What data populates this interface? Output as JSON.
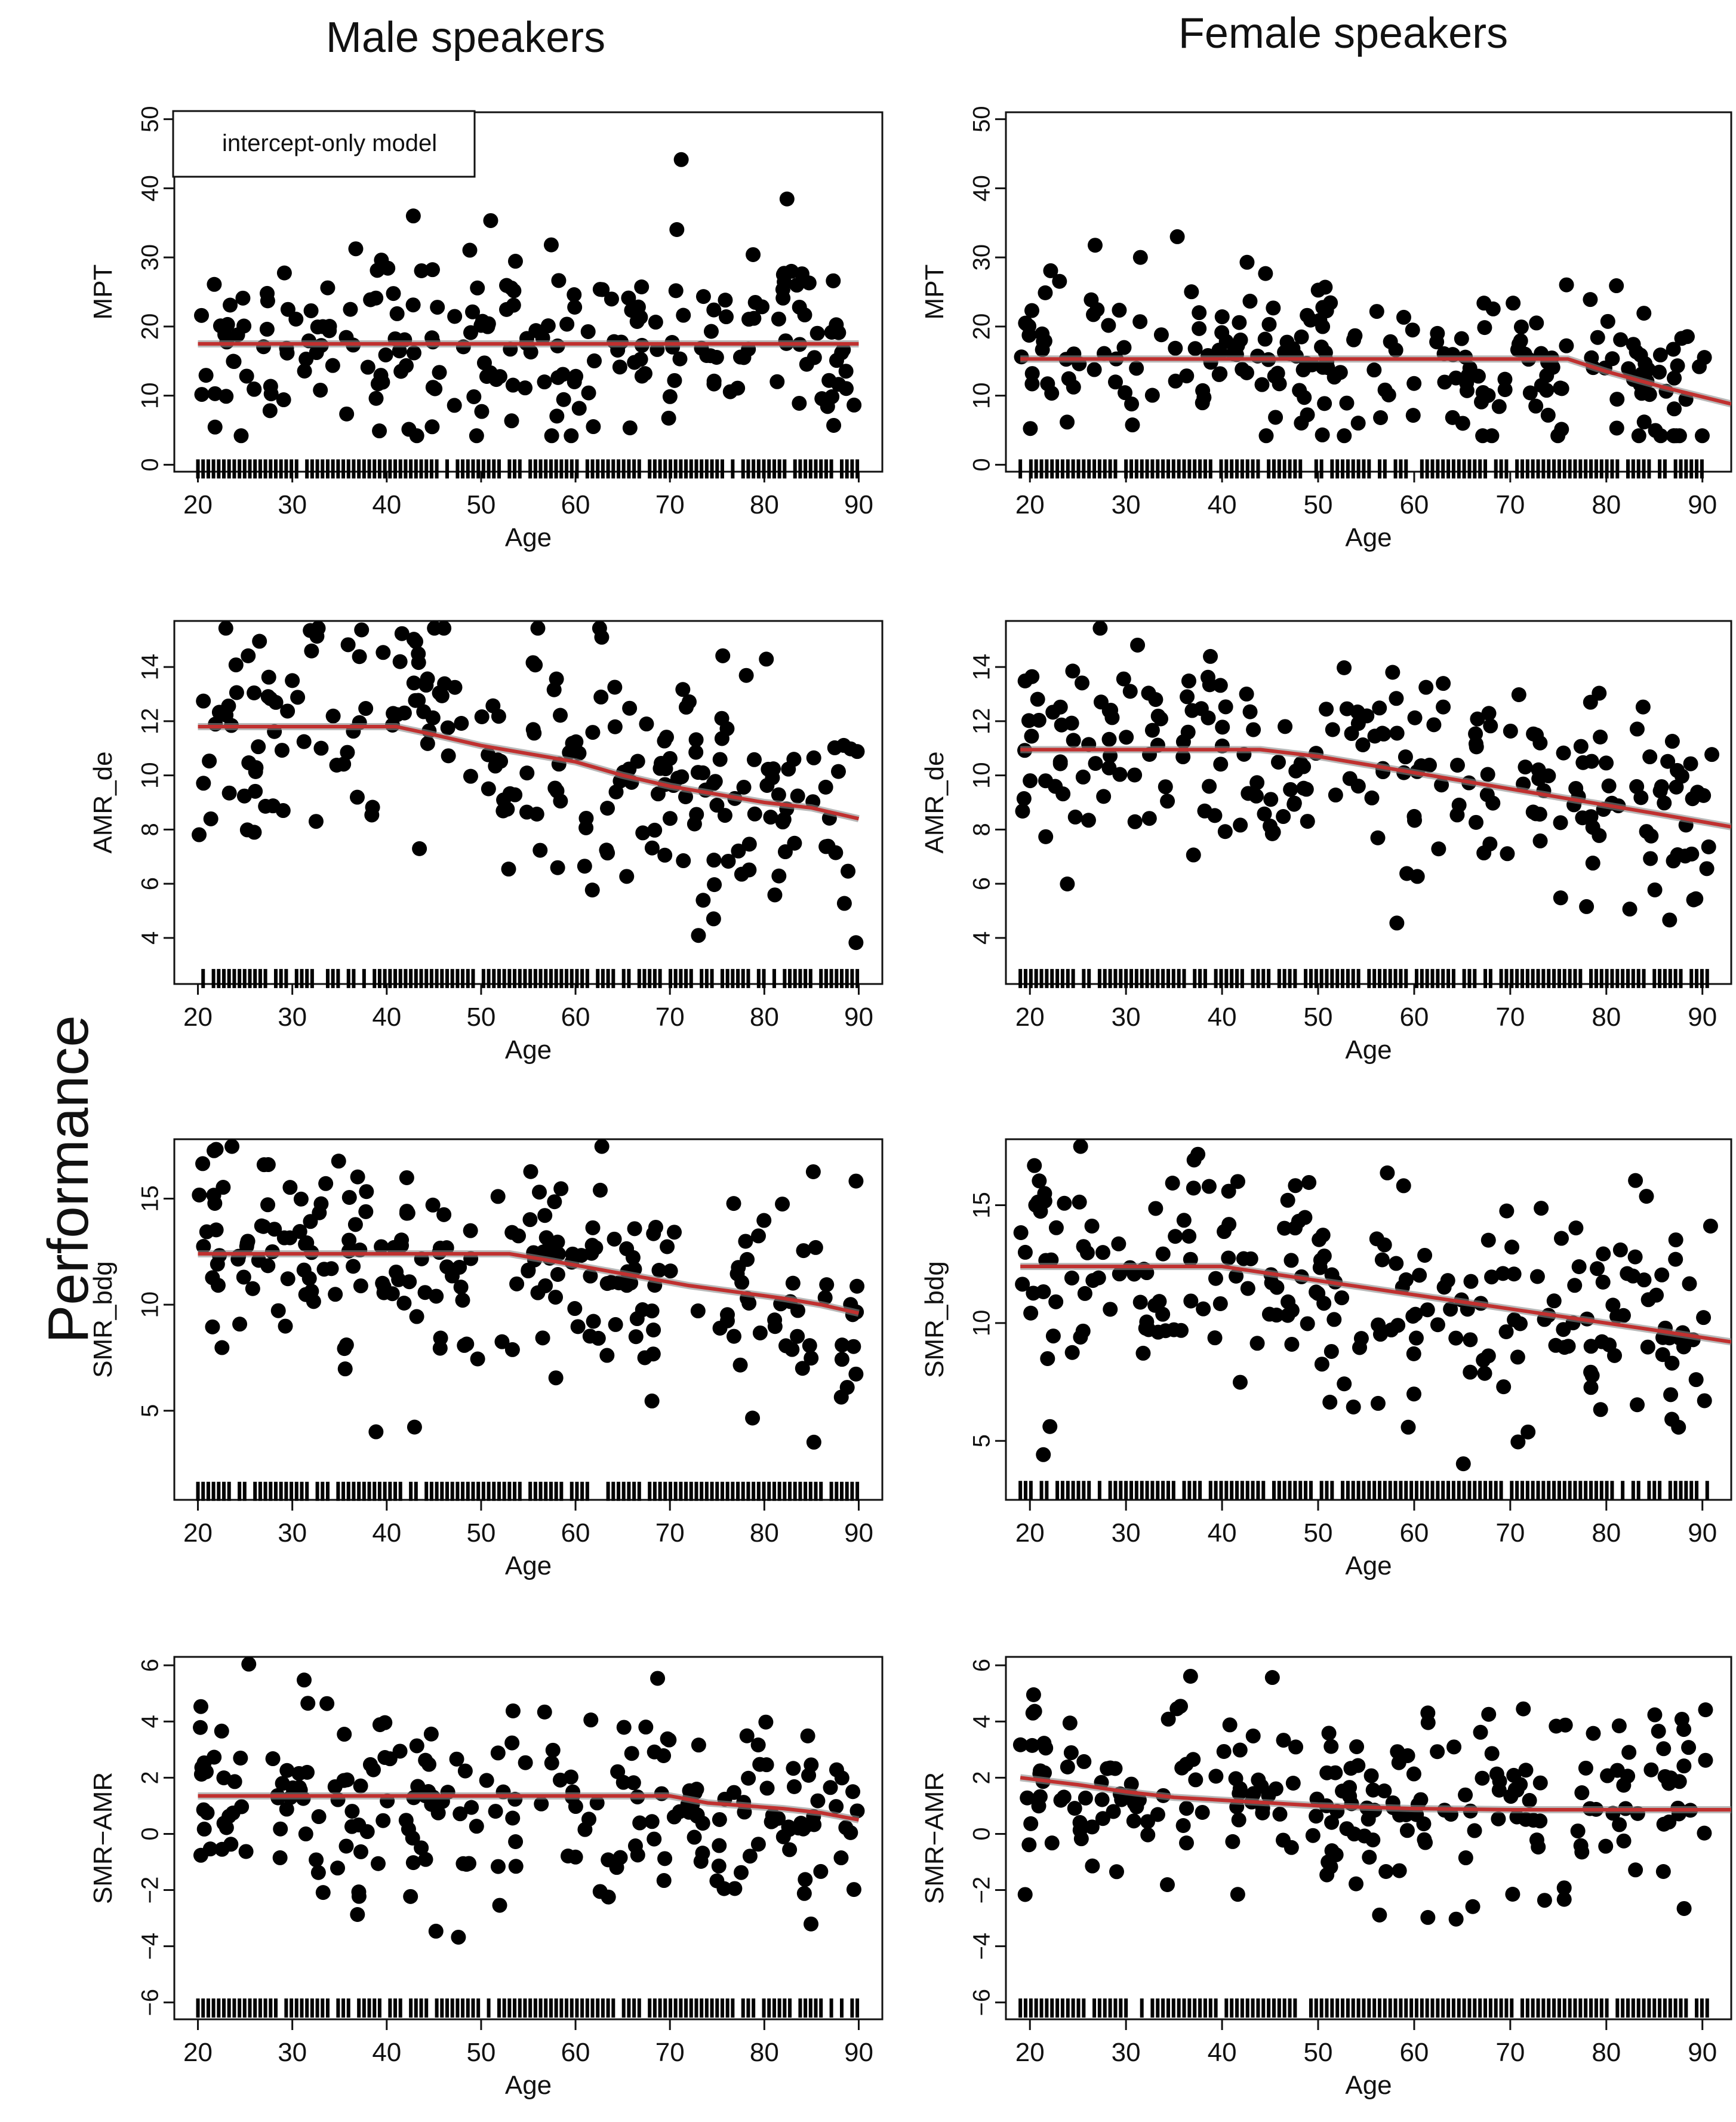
{
  "figure": {
    "columns": [
      "Male speakers",
      "Female speakers"
    ],
    "y_super_label": "Performance",
    "fit_color": "#c0302f",
    "fit_shadow_color": "#8a8a8a",
    "point_color": "#000000"
  },
  "chart_data": [
    {
      "type": "scatter",
      "id": "male-mpt",
      "col": 0,
      "row": 0,
      "title": "Male speakers",
      "xlabel": "Age",
      "ylabel": "MPT",
      "xlim": [
        17.5,
        92.5
      ],
      "ylim": [
        -1,
        51
      ],
      "xticks": [
        20,
        30,
        40,
        50,
        60,
        70,
        80,
        90
      ],
      "yticks": [
        0,
        10,
        20,
        30,
        40,
        50
      ],
      "legend": "intercept-only model",
      "fit": [
        [
          20,
          17.5
        ],
        [
          90,
          17.5
        ]
      ],
      "rug": {
        "y": -0.6,
        "from": 20,
        "to": 90
      }
    },
    {
      "type": "scatter",
      "id": "female-mpt",
      "col": 1,
      "row": 0,
      "title": "Female speakers",
      "xlabel": "Age",
      "ylabel": "MPT",
      "xlim": [
        17.5,
        93
      ],
      "ylim": [
        -1,
        51
      ],
      "xticks": [
        20,
        30,
        40,
        50,
        60,
        70,
        80,
        90
      ],
      "yticks": [
        0,
        10,
        20,
        30,
        40,
        50
      ],
      "fit": [
        [
          19,
          15.3
        ],
        [
          76,
          15.3
        ],
        [
          80,
          13.5
        ],
        [
          86,
          11.2
        ],
        [
          93,
          8.8
        ]
      ],
      "rug": {
        "y": -0.6,
        "from": 19,
        "to": 91
      }
    },
    {
      "type": "scatter",
      "id": "male-amr",
      "col": 0,
      "row": 1,
      "title": "Male speakers",
      "xlabel": "Age",
      "ylabel": "AMR_de",
      "xlim": [
        17.5,
        92.5
      ],
      "ylim": [
        2.3,
        15.7
      ],
      "xticks": [
        20,
        30,
        40,
        50,
        60,
        70,
        80,
        90
      ],
      "yticks": [
        4,
        6,
        8,
        10,
        12,
        14
      ],
      "fit": [
        [
          20,
          11.8
        ],
        [
          41,
          11.8
        ],
        [
          45,
          11.5
        ],
        [
          50,
          11.1
        ],
        [
          55,
          10.8
        ],
        [
          60,
          10.5
        ],
        [
          65,
          10.0
        ],
        [
          70,
          9.6
        ],
        [
          75,
          9.3
        ],
        [
          80,
          9.0
        ],
        [
          85,
          8.8
        ],
        [
          90,
          8.4
        ]
      ],
      "rug": {
        "y": 2.5,
        "from": 20,
        "to": 90
      }
    },
    {
      "type": "scatter",
      "id": "female-amr",
      "col": 1,
      "row": 1,
      "title": "Female speakers",
      "xlabel": "Age",
      "ylabel": "AMR_de",
      "xlim": [
        17.5,
        93
      ],
      "ylim": [
        2.3,
        15.7
      ],
      "xticks": [
        20,
        30,
        40,
        50,
        60,
        70,
        80,
        90
      ],
      "yticks": [
        4,
        6,
        8,
        10,
        12,
        14
      ],
      "fit": [
        [
          19,
          10.95
        ],
        [
          44,
          10.95
        ],
        [
          50,
          10.7
        ],
        [
          55,
          10.4
        ],
        [
          60,
          10.1
        ],
        [
          65,
          9.8
        ],
        [
          70,
          9.5
        ],
        [
          75,
          9.2
        ],
        [
          80,
          8.9
        ],
        [
          85,
          8.6
        ],
        [
          93,
          8.1
        ]
      ],
      "rug": {
        "y": 2.5,
        "from": 19,
        "to": 91
      }
    },
    {
      "type": "scatter",
      "id": "male-smr",
      "col": 0,
      "row": 2,
      "title": "Male speakers",
      "xlabel": "Age",
      "ylabel": "SMR_bdg",
      "xlim": [
        17.5,
        92.5
      ],
      "ylim": [
        0.8,
        17.8
      ],
      "xticks": [
        20,
        30,
        40,
        50,
        60,
        70,
        80,
        90
      ],
      "yticks": [
        5,
        10,
        15
      ],
      "fit": [
        [
          20,
          12.4
        ],
        [
          53,
          12.4
        ],
        [
          57,
          12.1
        ],
        [
          62,
          11.7
        ],
        [
          67,
          11.3
        ],
        [
          72,
          10.9
        ],
        [
          77,
          10.6
        ],
        [
          82,
          10.3
        ],
        [
          86,
          10.0
        ],
        [
          90,
          9.6
        ]
      ],
      "rug": {
        "y": 1.2,
        "from": 20,
        "to": 90
      }
    },
    {
      "type": "scatter",
      "id": "female-smr",
      "col": 1,
      "row": 2,
      "title": "Female speakers",
      "xlabel": "Age",
      "ylabel": "SMR_bdg",
      "xlim": [
        17.5,
        93
      ],
      "ylim": [
        2.5,
        17.8
      ],
      "xticks": [
        20,
        30,
        40,
        50,
        60,
        70,
        80,
        90
      ],
      "yticks": [
        5,
        10,
        15
      ],
      "fit": [
        [
          19,
          12.4
        ],
        [
          40,
          12.4
        ],
        [
          45,
          12.1
        ],
        [
          50,
          11.8
        ],
        [
          55,
          11.5
        ],
        [
          60,
          11.2
        ],
        [
          65,
          10.9
        ],
        [
          70,
          10.6
        ],
        [
          75,
          10.3
        ],
        [
          80,
          10.0
        ],
        [
          85,
          9.7
        ],
        [
          93,
          9.2
        ]
      ],
      "rug": {
        "y": 2.9,
        "from": 19,
        "to": 91
      }
    },
    {
      "type": "scatter",
      "id": "male-diff",
      "col": 0,
      "row": 3,
      "title": "Male speakers",
      "xlabel": "Age",
      "ylabel": "SMR−AMR",
      "xlim": [
        17.5,
        92.5
      ],
      "ylim": [
        -6.6,
        6.3
      ],
      "xticks": [
        20,
        30,
        40,
        50,
        60,
        70,
        80,
        90
      ],
      "yticks": [
        -6,
        -4,
        -2,
        0,
        2,
        4,
        6
      ],
      "fit": [
        [
          20,
          1.35
        ],
        [
          70,
          1.35
        ],
        [
          74,
          1.1
        ],
        [
          78,
          1.0
        ],
        [
          82,
          0.9
        ],
        [
          86,
          0.75
        ],
        [
          90,
          0.5
        ]
      ],
      "rug": {
        "y": -6.2,
        "from": 20,
        "to": 90
      }
    },
    {
      "type": "scatter",
      "id": "female-diff",
      "col": 1,
      "row": 3,
      "title": "Female speakers",
      "xlabel": "Age",
      "ylabel": "SMR−AMR",
      "xlim": [
        17.5,
        93
      ],
      "ylim": [
        -6.6,
        6.3
      ],
      "xticks": [
        20,
        30,
        40,
        50,
        60,
        70,
        80,
        90
      ],
      "yticks": [
        -6,
        -4,
        -2,
        0,
        2,
        4,
        6
      ],
      "fit": [
        [
          19,
          2.0
        ],
        [
          25,
          1.75
        ],
        [
          30,
          1.5
        ],
        [
          35,
          1.3
        ],
        [
          40,
          1.2
        ],
        [
          45,
          1.1
        ],
        [
          50,
          1.0
        ],
        [
          55,
          0.95
        ],
        [
          60,
          0.9
        ],
        [
          65,
          0.88
        ],
        [
          70,
          0.86
        ],
        [
          80,
          0.86
        ],
        [
          93,
          0.86
        ]
      ],
      "rug": {
        "y": -6.2,
        "from": 19,
        "to": 91
      }
    }
  ]
}
